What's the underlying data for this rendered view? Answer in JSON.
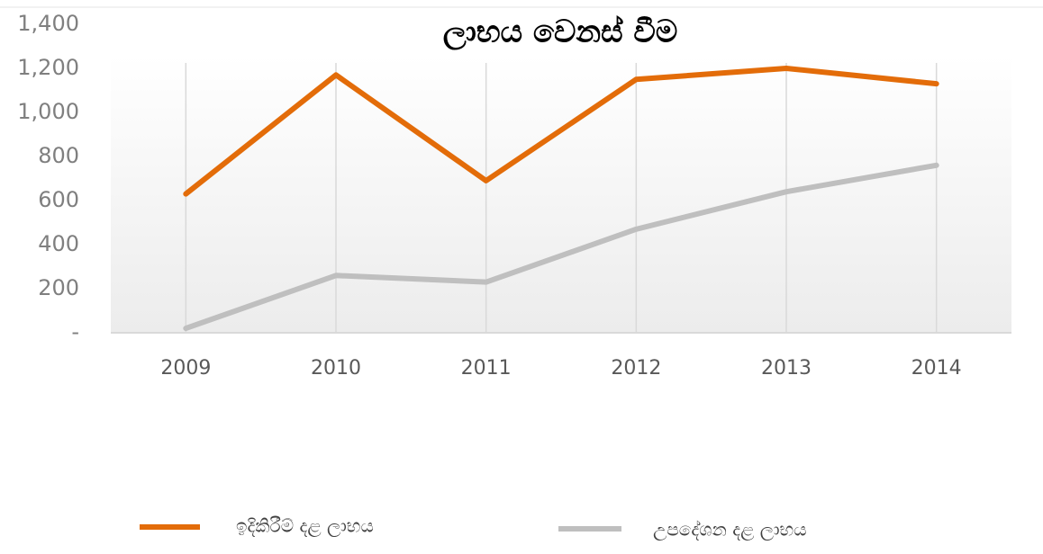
{
  "chart_data": {
    "type": "line",
    "title": "ලාභය වෙනස් වීම",
    "categories": [
      "2009",
      "2010",
      "2011",
      "2012",
      "2013",
      "2014"
    ],
    "series": [
      {
        "name": "ඉදිකිරීම් දළ ලාභය",
        "color": "#e36c09",
        "values": [
          630,
          1170,
          690,
          1150,
          1200,
          1130
        ]
      },
      {
        "name": "උපදේශන දළ ලාභය",
        "color": "#bfbfbf",
        "values": [
          20,
          260,
          230,
          470,
          640,
          760
        ]
      }
    ],
    "ylim": [
      0,
      1400
    ],
    "yticks": [
      {
        "value": 0,
        "label": "-"
      },
      200,
      400,
      600,
      800,
      {
        "value": 1000,
        "label": "1,000"
      },
      {
        "value": 1200,
        "label": "1,200"
      },
      {
        "value": 1400,
        "label": "1,400"
      }
    ],
    "grid": true
  }
}
